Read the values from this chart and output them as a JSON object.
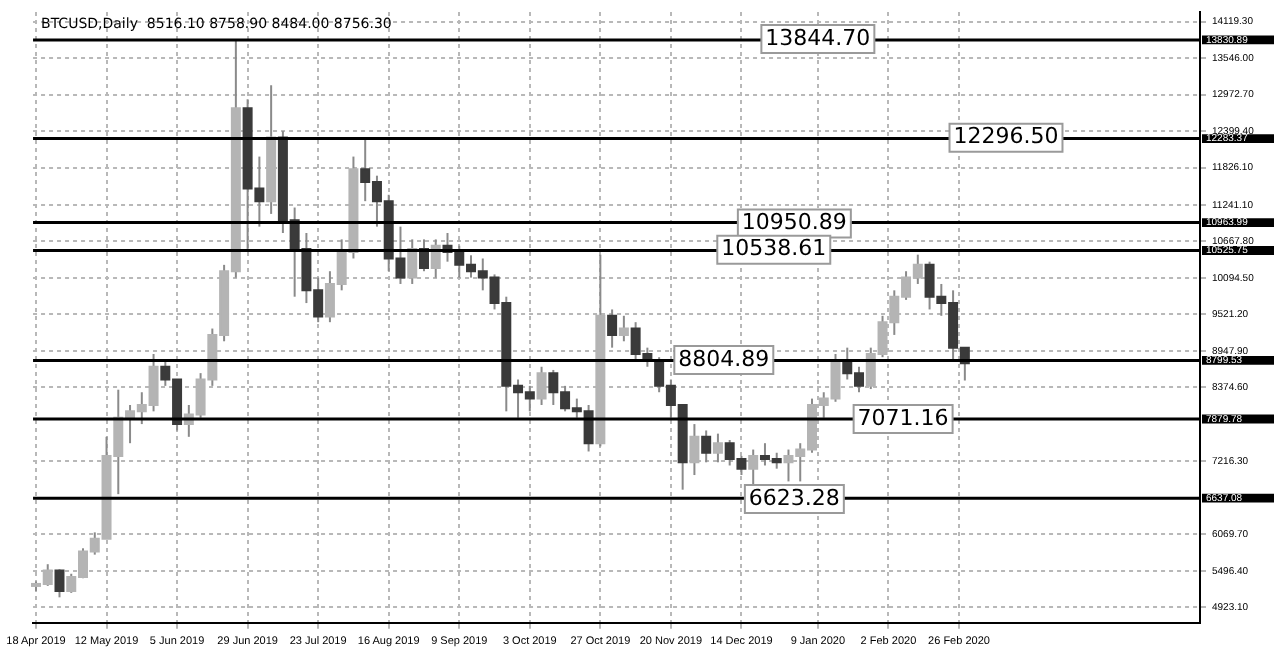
{
  "chart_data": {
    "type": "candlestick",
    "title": "BTCUSD,Daily",
    "subtitle": "8516.10 8758.90 8484.00 8756.30",
    "colors": [
      "#b4b4b4",
      "#b4b4b4",
      "#3a3a3a",
      "#b4b4b4",
      "#b4b4b4",
      "#b4b4b4",
      "#b4b4b4",
      "#b4b4b4",
      "#b4b4b4",
      "#b4b4b4",
      "#b4b4b4",
      "#3a3a3a",
      "#3a3a3a",
      "#b4b4b4",
      "#b4b4b4",
      "#b4b4b4",
      "#b4b4b4",
      "#b4b4b4",
      "#3a3a3a",
      "#3a3a3a",
      "#b4b4b4",
      "#3a3a3a",
      "#3a3a3a",
      "#3a3a3a",
      "#3a3a3a",
      "#b4b4b4",
      "#b4b4b4",
      "#b4b4b4",
      "#3a3a3a",
      "#3a3a3a",
      "#3a3a3a",
      "#3a3a3a",
      "#b4b4b4",
      "#3a3a3a",
      "#b4b4b4",
      "#3a3a3a",
      "#3a3a3a",
      "#3a3a3a",
      "#3a3a3a",
      "#3a3a3a",
      "#3a3a3a",
      "#3a3a3a",
      "#3a3a3a",
      "#b4b4b4",
      "#3a3a3a",
      "#3a3a3a",
      "#3a3a3a",
      "#3a3a3a",
      "#b4b4b4",
      "#3a3a3a",
      "#b4b4b4",
      "#3a3a3a",
      "#3a3a3a",
      "#3a3a3a",
      "#3a3a3a",
      "#3a3a3a",
      "#b4b4b4",
      "#3a3a3a",
      "#b4b4b4",
      "#3a3a3a",
      "#3a3a3a",
      "#b4b4b4",
      "#3a3a3a",
      "#3a3a3a",
      "#b4b4b4",
      "#b4b4b4",
      "#b4b4b4",
      "#b4b4b4",
      "#b4b4b4",
      "#3a3a3a",
      "#3a3a3a",
      "#b4b4b4",
      "#b4b4b4",
      "#b4b4b4",
      "#b4b4b4",
      "#b4b4b4",
      "#3a3a3a",
      "#3a3a3a",
      "#3a3a3a",
      "#3a3a3a"
    ],
    "x": [
      "2019-04-18",
      "2019-04-22",
      "2019-04-26",
      "2019-04-30",
      "2019-05-04",
      "2019-05-08",
      "2019-05-12",
      "2019-05-16",
      "2019-05-20",
      "2019-05-24",
      "2019-05-28",
      "2019-06-01",
      "2019-06-05",
      "2019-06-09",
      "2019-06-13",
      "2019-06-17",
      "2019-06-21",
      "2019-06-25",
      "2019-06-29",
      "2019-07-03",
      "2019-07-07",
      "2019-07-11",
      "2019-07-15",
      "2019-07-19",
      "2019-07-23",
      "2019-07-27",
      "2019-07-31",
      "2019-08-04",
      "2019-08-08",
      "2019-08-12",
      "2019-08-16",
      "2019-08-20",
      "2019-08-24",
      "2019-08-28",
      "2019-09-01",
      "2019-09-05",
      "2019-09-09",
      "2019-09-13",
      "2019-09-17",
      "2019-09-21",
      "2019-09-25",
      "2019-09-29",
      "2019-10-03",
      "2019-10-07",
      "2019-10-11",
      "2019-10-15",
      "2019-10-19",
      "2019-10-23",
      "2019-10-27",
      "2019-10-31",
      "2019-11-04",
      "2019-11-08",
      "2019-11-12",
      "2019-11-16",
      "2019-11-20",
      "2019-11-24",
      "2019-11-28",
      "2019-12-02",
      "2019-12-06",
      "2019-12-10",
      "2019-12-14",
      "2019-12-18",
      "2019-12-22",
      "2019-12-26",
      "2019-12-30",
      "2020-01-03",
      "2020-01-07",
      "2020-01-11",
      "2020-01-15",
      "2020-01-19",
      "2020-01-23",
      "2020-01-27",
      "2020-01-31",
      "2020-02-04",
      "2020-02-08",
      "2020-02-12",
      "2020-02-16",
      "2020-02-20",
      "2020-02-24",
      "2020-02-28"
    ],
    "ohlc": [
      [
        5270,
        5330,
        5180,
        5290
      ],
      [
        5290,
        5600,
        5260,
        5500
      ],
      [
        5500,
        5520,
        5080,
        5180
      ],
      [
        5180,
        5450,
        5150,
        5400
      ],
      [
        5400,
        5850,
        5380,
        5800
      ],
      [
        5800,
        6100,
        5750,
        6000
      ],
      [
        6000,
        7600,
        6000,
        7300
      ],
      [
        7300,
        8340,
        6700,
        7900
      ],
      [
        7900,
        8100,
        7500,
        8000
      ],
      [
        8000,
        8300,
        7800,
        8100
      ],
      [
        8100,
        8900,
        8000,
        8700
      ],
      [
        8700,
        8800,
        8400,
        8500
      ],
      [
        8500,
        8500,
        7700,
        7800
      ],
      [
        7800,
        8100,
        7600,
        7950
      ],
      [
        7950,
        8600,
        7900,
        8500
      ],
      [
        8500,
        9300,
        8400,
        9200
      ],
      [
        9200,
        10300,
        9100,
        10200
      ],
      [
        10200,
        13820,
        10100,
        12760
      ],
      [
        12760,
        12900,
        10550,
        11500
      ],
      [
        11500,
        12000,
        10900,
        11300
      ],
      [
        11300,
        13120,
        11100,
        12300
      ],
      [
        12300,
        12400,
        10800,
        11000
      ],
      [
        11000,
        11200,
        9800,
        10550
      ],
      [
        10550,
        10800,
        9700,
        9900
      ],
      [
        9900,
        10100,
        9400,
        9490
      ],
      [
        9490,
        10200,
        9400,
        10000
      ],
      [
        10000,
        10700,
        9900,
        10500
      ],
      [
        10500,
        12000,
        10400,
        11800
      ],
      [
        11800,
        12270,
        11300,
        11600
      ],
      [
        11600,
        11700,
        10900,
        11300
      ],
      [
        11300,
        11400,
        10200,
        10400
      ],
      [
        10400,
        10900,
        10000,
        10100
      ],
      [
        10100,
        10700,
        10000,
        10550
      ],
      [
        10550,
        10700,
        10200,
        10250
      ],
      [
        10250,
        10700,
        10100,
        10600
      ],
      [
        10600,
        10800,
        10350,
        10500
      ],
      [
        10500,
        10600,
        10100,
        10300
      ],
      [
        10300,
        10450,
        10100,
        10200
      ],
      [
        10200,
        10400,
        9900,
        10100
      ],
      [
        10100,
        10150,
        9600,
        9700
      ],
      [
        9700,
        9800,
        8000,
        8400
      ],
      [
        8400,
        8500,
        7900,
        8300
      ],
      [
        8300,
        8400,
        8000,
        8200
      ],
      [
        8200,
        8700,
        8100,
        8600
      ],
      [
        8600,
        8650,
        8100,
        8300
      ],
      [
        8300,
        8400,
        8000,
        8050
      ],
      [
        8050,
        8200,
        7900,
        8000
      ],
      [
        8000,
        8100,
        7370,
        7500
      ],
      [
        7500,
        10460,
        7450,
        9500
      ],
      [
        9500,
        9600,
        9000,
        9200
      ],
      [
        9200,
        9500,
        9100,
        9300
      ],
      [
        9300,
        9400,
        8800,
        8900
      ],
      [
        8900,
        9000,
        8700,
        8800
      ],
      [
        8800,
        8850,
        8300,
        8400
      ],
      [
        8400,
        8500,
        7900,
        8100
      ],
      [
        8100,
        8100,
        6770,
        7200
      ],
      [
        7200,
        7800,
        7000,
        7600
      ],
      [
        7600,
        7700,
        7200,
        7350
      ],
      [
        7350,
        7650,
        7200,
        7500
      ],
      [
        7500,
        7550,
        7150,
        7250
      ],
      [
        7250,
        7300,
        7000,
        7100
      ],
      [
        7100,
        7400,
        6610,
        7300
      ],
      [
        7300,
        7500,
        7150,
        7250
      ],
      [
        7250,
        7350,
        7100,
        7200
      ],
      [
        7200,
        7400,
        6900,
        7300
      ],
      [
        7300,
        7500,
        6900,
        7400
      ],
      [
        7400,
        8200,
        7350,
        8100
      ],
      [
        8100,
        8300,
        7900,
        8200
      ],
      [
        8200,
        8900,
        8150,
        8800
      ],
      [
        8800,
        9000,
        8500,
        8600
      ],
      [
        8600,
        8700,
        8300,
        8400
      ],
      [
        8400,
        9000,
        8350,
        8900
      ],
      [
        8900,
        9500,
        8850,
        9400
      ],
      [
        9400,
        9900,
        9200,
        9800
      ],
      [
        9800,
        10200,
        9750,
        10100
      ],
      [
        10100,
        10460,
        10000,
        10300
      ],
      [
        10300,
        10350,
        9600,
        9800
      ],
      [
        9800,
        10000,
        9500,
        9700
      ],
      [
        9700,
        9900,
        8800,
        9000
      ],
      [
        9000,
        9000,
        8484,
        8756.3
      ]
    ],
    "xlim": [
      "2019-04-17",
      "2020-05-18"
    ],
    "xticks": [
      {
        "value": "2019-04-18",
        "label": "18 Apr 2019"
      },
      {
        "value": "2019-05-12",
        "label": "12 May 2019"
      },
      {
        "value": "2019-06-05",
        "label": "5 Jun 2019"
      },
      {
        "value": "2019-06-29",
        "label": "29 Jun 2019"
      },
      {
        "value": "2019-07-23",
        "label": "23 Jul 2019"
      },
      {
        "value": "2019-08-16",
        "label": "16 Aug 2019"
      },
      {
        "value": "2019-09-09",
        "label": "9 Sep 2019"
      },
      {
        "value": "2019-10-03",
        "label": "3 Oct 2019"
      },
      {
        "value": "2019-10-27",
        "label": "27 Oct 2019"
      },
      {
        "value": "2019-11-20",
        "label": "20 Nov 2019"
      },
      {
        "value": "2019-12-14",
        "label": "14 Dec 2019"
      },
      {
        "value": "2020-01-09",
        "label": "9 Jan 2020"
      },
      {
        "value": "2020-02-02",
        "label": "2 Feb 2020"
      },
      {
        "value": "2020-02-26",
        "label": "26 Feb 2020"
      }
    ],
    "ylim": [
      4680,
      14270
    ],
    "yticks": [
      {
        "value": 4923.1,
        "label": "4923.10"
      },
      {
        "value": 5496.4,
        "label": "5496.40"
      },
      {
        "value": 6069.7,
        "label": "6069.70"
      },
      {
        "value": 7216.3,
        "label": "7216.30"
      },
      {
        "value": 8374.6,
        "label": "8374.60"
      },
      {
        "value": 8947.9,
        "label": "8947.90"
      },
      {
        "value": 9521.2,
        "label": "9521.20"
      },
      {
        "value": 10094.5,
        "label": "10094.50"
      },
      {
        "value": 10667.8,
        "label": "10667.80"
      },
      {
        "value": 11241.1,
        "label": "11241.10"
      },
      {
        "value": 11826.1,
        "label": "11826.10"
      },
      {
        "value": 12399.4,
        "label": "12399.40"
      },
      {
        "value": 12972.7,
        "label": "12972.70"
      },
      {
        "value": 13546,
        "label": "13546.00"
      },
      {
        "value": 14119.3,
        "label": "14119.30"
      }
    ],
    "ref_lines": [
      {
        "axis": "y",
        "value": 13830.89,
        "label": "13830.89",
        "color": "#000000"
      },
      {
        "axis": "y",
        "value": 12283.37,
        "label": "12283.37",
        "color": "#000000"
      },
      {
        "axis": "y",
        "value": 10963.99,
        "label": "10963.99",
        "color": "#000000"
      },
      {
        "axis": "y",
        "value": 10525.75,
        "label": "10525.75",
        "color": "#000000"
      },
      {
        "axis": "y",
        "value": 8799.53,
        "label": "8799.53",
        "color": "#000000"
      },
      {
        "axis": "y",
        "value": 7879.78,
        "label": "7879.78",
        "color": "#000000"
      },
      {
        "axis": "y",
        "value": 6637.08,
        "label": "6637.08",
        "color": "#000000"
      }
    ],
    "annotations": [
      {
        "text": "13844.70",
        "x": "2020-01-09",
        "y": 13844.7
      },
      {
        "text": "12296.50",
        "x": "2020-03-13",
        "y": 12296.5
      },
      {
        "text": "10950.89",
        "x": "2020-01-01",
        "y": 10950.89
      },
      {
        "text": "10538.61",
        "x": "2019-12-25",
        "y": 10538.61
      },
      {
        "text": "8804.89",
        "x": "2019-12-08",
        "y": 8804.89
      },
      {
        "text": "7071.16",
        "x": "2020-02-07",
        "y": 7879.78
      },
      {
        "text": "6623.28",
        "x": "2020-01-01",
        "y": 6623.28
      }
    ],
    "grid": true,
    "legend": false
  }
}
